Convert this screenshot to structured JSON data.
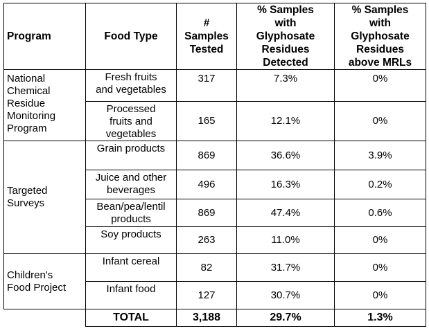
{
  "headers": {
    "program": "Program",
    "food_type": "Food Type",
    "samples_tested": [
      "#",
      "Samples",
      "Tested"
    ],
    "detected": [
      "% Samples",
      "with",
      "Glyphosate",
      "Residues",
      "Detected"
    ],
    "above_mrl": [
      "% Samples",
      "with",
      "Glyphosate",
      "Residues",
      "above MRLs"
    ]
  },
  "programs": [
    {
      "name": [
        "National",
        "Chemical",
        "Residue",
        "Monitoring",
        "Program"
      ]
    },
    {
      "name": [
        "Targeted",
        "Surveys"
      ]
    },
    {
      "name": [
        "Children's",
        "Food Project"
      ]
    }
  ],
  "rows": [
    {
      "food_type": [
        "Fresh fruits",
        "and vegetables"
      ],
      "samples": "317",
      "detected": "7.3%",
      "above_mrl": "0%"
    },
    {
      "food_type": [
        "Processed",
        "fruits and",
        "vegetables"
      ],
      "samples": "165",
      "detected": "12.1%",
      "above_mrl": "0%"
    },
    {
      "food_type": [
        "Grain products"
      ],
      "samples": "869",
      "detected": "36.6%",
      "above_mrl": "3.9%"
    },
    {
      "food_type": [
        "Juice and other",
        "beverages"
      ],
      "samples": "496",
      "detected": "16.3%",
      "above_mrl": "0.2%"
    },
    {
      "food_type": [
        "Bean/pea/lentil",
        "products"
      ],
      "samples": "869",
      "detected": "47.4%",
      "above_mrl": "0.6%"
    },
    {
      "food_type": [
        "Soy products"
      ],
      "samples": "263",
      "detected": "11.0%",
      "above_mrl": "0%"
    },
    {
      "food_type": [
        "Infant cereal"
      ],
      "samples": "82",
      "detected": "31.7%",
      "above_mrl": "0%"
    },
    {
      "food_type": [
        "Infant food"
      ],
      "samples": "127",
      "detected": "30.7%",
      "above_mrl": "0%"
    }
  ],
  "total": {
    "label": "TOTAL",
    "samples": "3,188",
    "detected": "29.7%",
    "above_mrl": "1.3%"
  }
}
